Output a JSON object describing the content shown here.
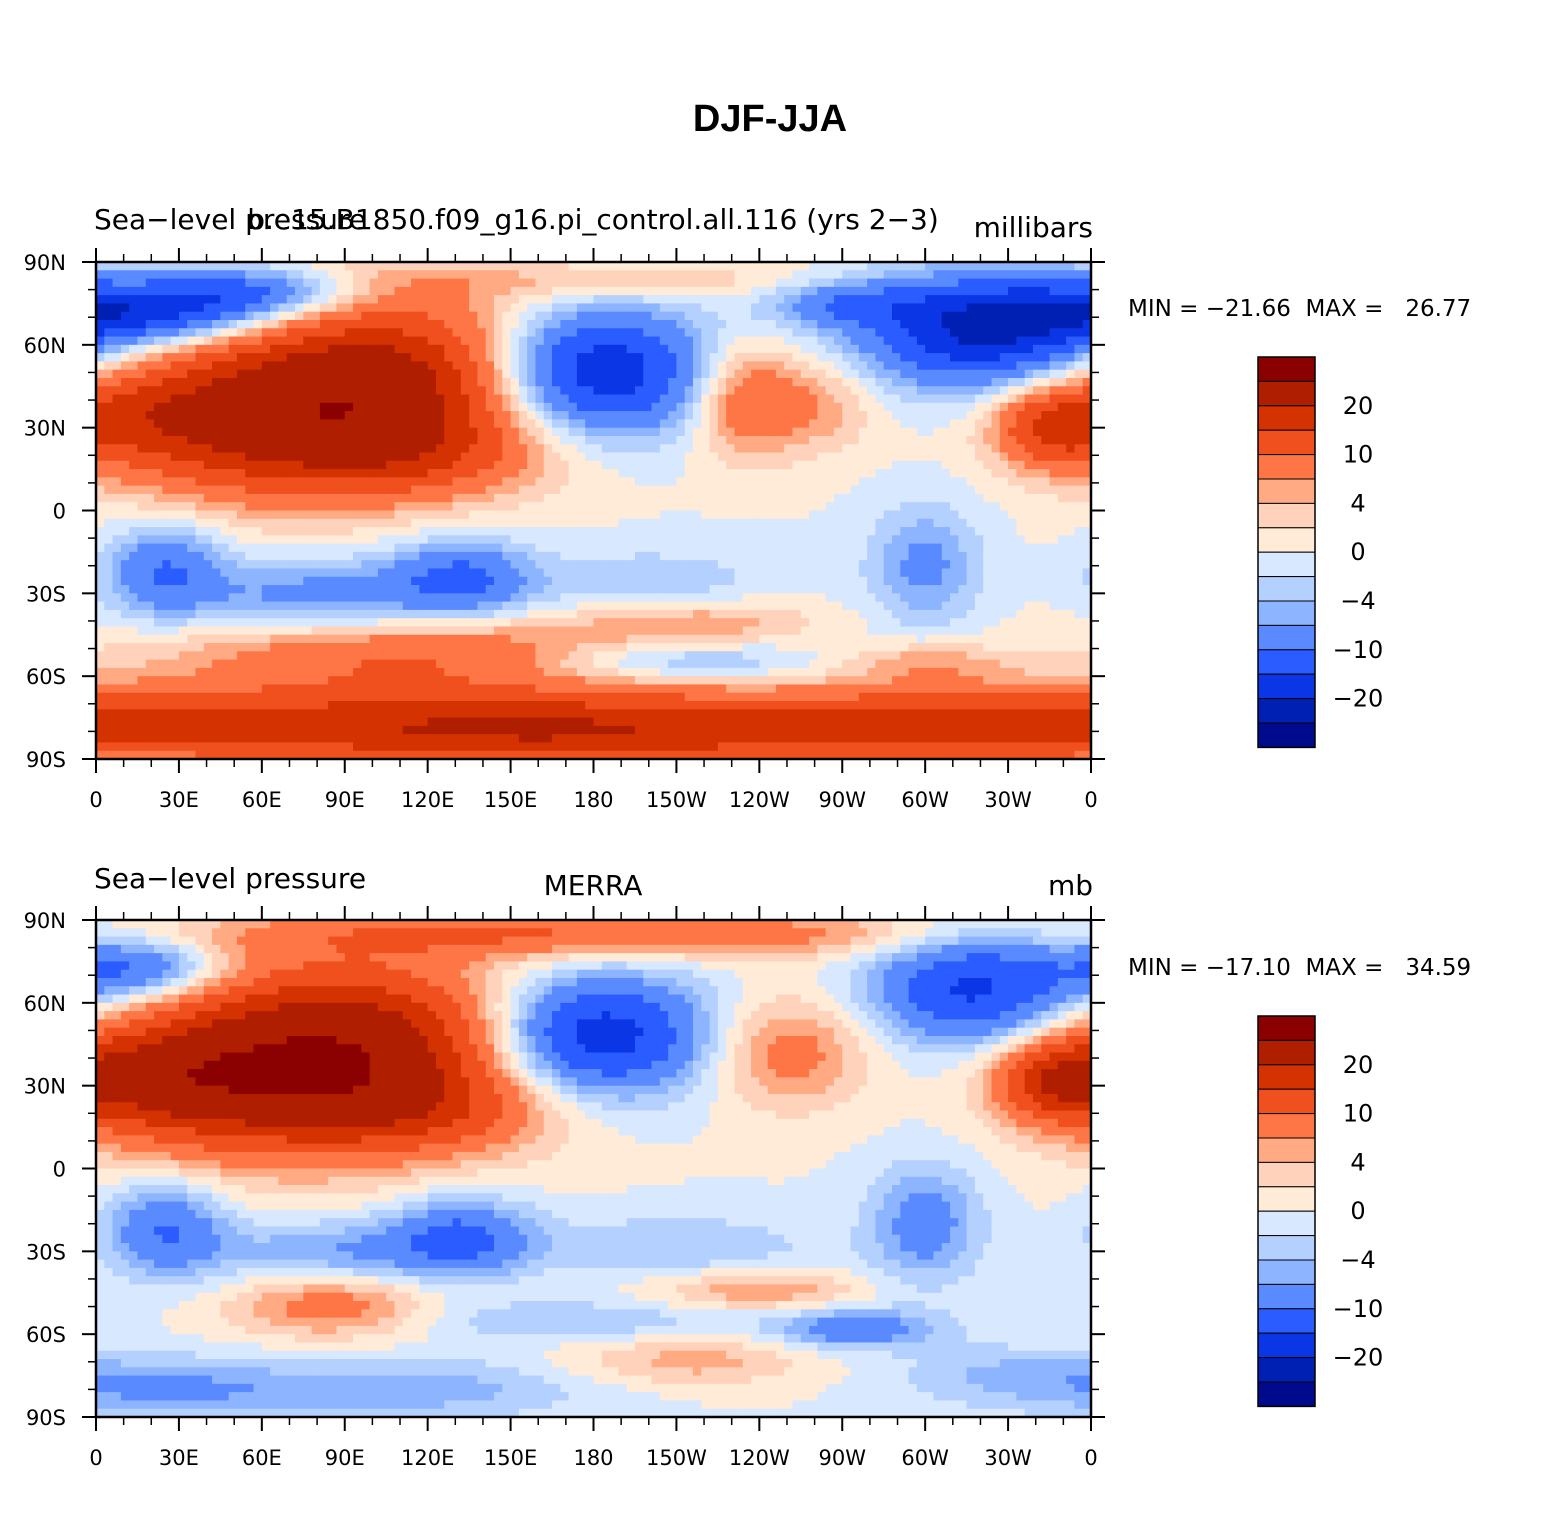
{
  "figure": {
    "title": "DJF-JJA"
  },
  "panels": [
    {
      "left_title": "Sea−level pressure",
      "center_title": "b.e15.B1850.f09_g16.pi_control.all.116 (yrs 2−3)",
      "right_title": "millibars",
      "stats": "MIN = −21.66  MAX =   26.77"
    },
    {
      "left_title": "Sea−level pressure",
      "center_title": "MERRA",
      "right_title": "mb",
      "stats": "MIN = −17.10  MAX =   34.59"
    }
  ],
  "colorbar": {
    "labels": [
      "20",
      "10",
      "4",
      "0",
      "−4",
      "−10",
      "−20"
    ],
    "colors": [
      "#8b0000",
      "#b01e00",
      "#d43200",
      "#f0501e",
      "#ff7646",
      "#ffaa82",
      "#ffd2bc",
      "#ffebd7",
      "#d7e8ff",
      "#b4d0ff",
      "#8cb4ff",
      "#5a8aff",
      "#2a5cff",
      "#0a36e6",
      "#0020b4",
      "#000a8c"
    ]
  },
  "chart_data": [
    {
      "type": "heatmap",
      "title": "Sea−level pressure",
      "subtitle": "b.e15.B1850.f09_g16.pi_control.all.116 (yrs 2−3)",
      "units": "millibars",
      "x_ticks": [
        "0",
        "30E",
        "60E",
        "90E",
        "120E",
        "150E",
        "180",
        "150W",
        "120W",
        "90W",
        "60W",
        "30W",
        "0"
      ],
      "y_ticks": [
        "90N",
        "60N",
        "30N",
        "0",
        "30S",
        "60S",
        "90S"
      ],
      "xlim": [
        0,
        360
      ],
      "ylim": [
        -90,
        90
      ],
      "min": -21.66,
      "max": 26.77,
      "anomalies": [
        {
          "lon": 100,
          "lat": 45,
          "value": 24,
          "sx": 45,
          "sy": 22
        },
        {
          "lon": 55,
          "lat": 28,
          "value": 12,
          "sx": 40,
          "sy": 18
        },
        {
          "lon": 15,
          "lat": 35,
          "value": 8,
          "sx": 25,
          "sy": 12
        },
        {
          "lon": 115,
          "lat": 20,
          "value": 6,
          "sx": 30,
          "sy": 10
        },
        {
          "lon": 235,
          "lat": 40,
          "value": 10,
          "sx": 14,
          "sy": 14
        },
        {
          "lon": 262,
          "lat": 38,
          "value": 5,
          "sx": 15,
          "sy": 12
        },
        {
          "lon": 345,
          "lat": 30,
          "value": 12,
          "sx": 14,
          "sy": 10
        },
        {
          "lon": 185,
          "lat": 83,
          "value": 4,
          "sx": 60,
          "sy": 5
        },
        {
          "lon": 180,
          "lat": 50,
          "value": -22,
          "sx": 28,
          "sy": 16
        },
        {
          "lon": 320,
          "lat": 65,
          "value": -20,
          "sx": 30,
          "sy": 14
        },
        {
          "lon": 20,
          "lat": 72,
          "value": -18,
          "sx": 35,
          "sy": 8
        },
        {
          "lon": 60,
          "lat": 80,
          "value": -10,
          "sx": 25,
          "sy": 6
        },
        {
          "lon": 270,
          "lat": 75,
          "value": -8,
          "sx": 20,
          "sy": 6
        },
        {
          "lon": 25,
          "lat": -22,
          "value": -10,
          "sx": 15,
          "sy": 12
        },
        {
          "lon": 80,
          "lat": -32,
          "value": -8,
          "sx": 30,
          "sy": 10
        },
        {
          "lon": 132,
          "lat": -25,
          "value": -11,
          "sx": 18,
          "sy": 10
        },
        {
          "lon": 300,
          "lat": -20,
          "value": -7,
          "sx": 14,
          "sy": 15
        },
        {
          "lon": 200,
          "lat": -28,
          "value": -4,
          "sx": 30,
          "sy": 10
        },
        {
          "lon": 110,
          "lat": -52,
          "value": 10,
          "sx": 60,
          "sy": 10
        },
        {
          "lon": 215,
          "lat": -40,
          "value": 6,
          "sx": 30,
          "sy": 6
        },
        {
          "lon": 210,
          "lat": -55,
          "value": -6,
          "sx": 35,
          "sy": 5
        },
        {
          "lon": 300,
          "lat": -55,
          "value": 5,
          "sx": 20,
          "sy": 5
        },
        {
          "lon": 60,
          "lat": -78,
          "value": 13,
          "sx": 90,
          "sy": 10
        },
        {
          "lon": 180,
          "lat": -80,
          "value": 14,
          "sx": 70,
          "sy": 10
        },
        {
          "lon": 300,
          "lat": -78,
          "value": 10,
          "sx": 60,
          "sy": 10
        }
      ]
    },
    {
      "type": "heatmap",
      "title": "Sea−level pressure",
      "subtitle": "MERRA",
      "units": "mb",
      "x_ticks": [
        "0",
        "30E",
        "60E",
        "90E",
        "120E",
        "150E",
        "180",
        "150W",
        "120W",
        "90W",
        "60W",
        "30W",
        "0"
      ],
      "y_ticks": [
        "90N",
        "60N",
        "30N",
        "0",
        "30S",
        "60S",
        "90S"
      ],
      "xlim": [
        0,
        360
      ],
      "ylim": [
        -90,
        90
      ],
      "min": -17.1,
      "max": 34.59,
      "anomalies": [
        {
          "lon": 90,
          "lat": 42,
          "value": 26,
          "sx": 45,
          "sy": 22
        },
        {
          "lon": 45,
          "lat": 30,
          "value": 12,
          "sx": 40,
          "sy": 18
        },
        {
          "lon": 15,
          "lat": 33,
          "value": 10,
          "sx": 25,
          "sy": 12
        },
        {
          "lon": 120,
          "lat": 20,
          "value": 6,
          "sx": 30,
          "sy": 10
        },
        {
          "lon": 180,
          "lat": 85,
          "value": 10,
          "sx": 90,
          "sy": 6
        },
        {
          "lon": 250,
          "lat": 42,
          "value": 8,
          "sx": 20,
          "sy": 14
        },
        {
          "lon": 345,
          "lat": 32,
          "value": 12,
          "sx": 14,
          "sy": 10
        },
        {
          "lon": 180,
          "lat": 48,
          "value": -20,
          "sx": 28,
          "sy": 15
        },
        {
          "lon": 318,
          "lat": 65,
          "value": -16,
          "sx": 25,
          "sy": 14
        },
        {
          "lon": 15,
          "lat": 72,
          "value": -12,
          "sx": 20,
          "sy": 8
        },
        {
          "lon": 25,
          "lat": -22,
          "value": -10,
          "sx": 15,
          "sy": 12
        },
        {
          "lon": 85,
          "lat": -30,
          "value": -6,
          "sx": 30,
          "sy": 8
        },
        {
          "lon": 132,
          "lat": -25,
          "value": -11,
          "sx": 18,
          "sy": 10
        },
        {
          "lon": 300,
          "lat": -20,
          "value": -8,
          "sx": 14,
          "sy": 15
        },
        {
          "lon": 210,
          "lat": -28,
          "value": -4,
          "sx": 35,
          "sy": 8
        },
        {
          "lon": 85,
          "lat": -50,
          "value": 8,
          "sx": 25,
          "sy": 8
        },
        {
          "lon": 240,
          "lat": -44,
          "value": 6,
          "sx": 25,
          "sy": 5
        },
        {
          "lon": 275,
          "lat": -58,
          "value": -9,
          "sx": 20,
          "sy": 5
        },
        {
          "lon": 170,
          "lat": -55,
          "value": -4,
          "sx": 40,
          "sy": 5
        },
        {
          "lon": 30,
          "lat": -80,
          "value": -6,
          "sx": 35,
          "sy": 8
        },
        {
          "lon": 120,
          "lat": -80,
          "value": -5,
          "sx": 40,
          "sy": 8
        },
        {
          "lon": 215,
          "lat": -70,
          "value": 5,
          "sx": 30,
          "sy": 6
        },
        {
          "lon": 330,
          "lat": -75,
          "value": -4,
          "sx": 30,
          "sy": 8
        }
      ]
    }
  ]
}
